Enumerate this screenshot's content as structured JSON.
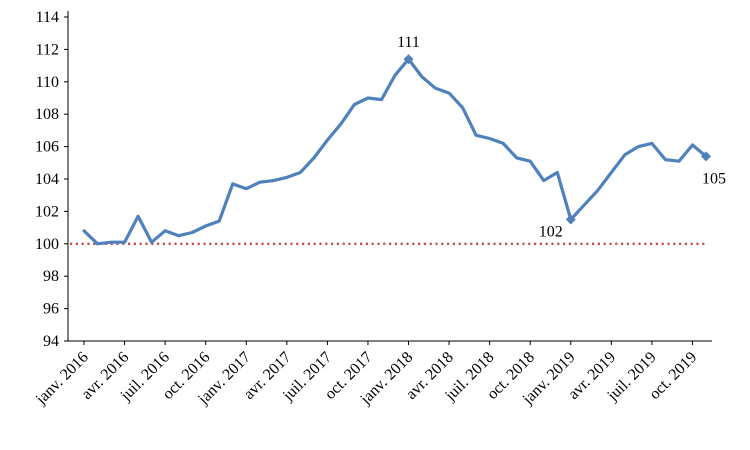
{
  "figure": {
    "background": "#ffffff",
    "text_color": "#000000"
  },
  "chart_data": {
    "type": "line",
    "title": "",
    "x_tick_labels": [
      "janv. 2016",
      "avr. 2016",
      "juil. 2016",
      "oct. 2016",
      "janv. 2017",
      "avr. 2017",
      "juil. 2017",
      "oct. 2017",
      "janv. 2018",
      "avr. 2018",
      "juil. 2018",
      "oct. 2018",
      "janv. 2019",
      "avr. 2019",
      "juil. 2019",
      "oct. 2019"
    ],
    "x_tick_step": 3,
    "x_unit": "month",
    "y_ticks": [
      94,
      96,
      98,
      100,
      102,
      104,
      106,
      108,
      110,
      112,
      114
    ],
    "ylim": [
      94,
      114
    ],
    "grid": false,
    "legend": "none",
    "series": [
      {
        "color": "#4F81BD",
        "values": [
          100.8,
          100.0,
          100.1,
          100.1,
          101.7,
          100.1,
          100.8,
          100.5,
          100.7,
          101.1,
          101.4,
          103.7,
          103.4,
          103.8,
          103.9,
          104.1,
          104.4,
          105.3,
          106.4,
          107.4,
          108.6,
          109.0,
          108.9,
          110.4,
          111.4,
          110.3,
          109.6,
          109.3,
          108.4,
          106.7,
          106.5,
          106.2,
          105.3,
          105.1,
          103.9,
          104.4,
          101.5,
          102.4,
          103.3,
          104.4,
          105.5,
          106.0,
          106.2,
          105.2,
          105.1,
          106.1,
          105.4
        ]
      }
    ],
    "reference_line": {
      "value": 100,
      "color": "#C0504D",
      "style": "dotted"
    },
    "markers": [
      24,
      36,
      46
    ],
    "annotations": [
      {
        "index": 24,
        "text": "111",
        "position": "above"
      },
      {
        "index": 36,
        "text": "102",
        "position": "left-below"
      },
      {
        "index": 46,
        "text": "105",
        "position": "below-right"
      }
    ]
  }
}
